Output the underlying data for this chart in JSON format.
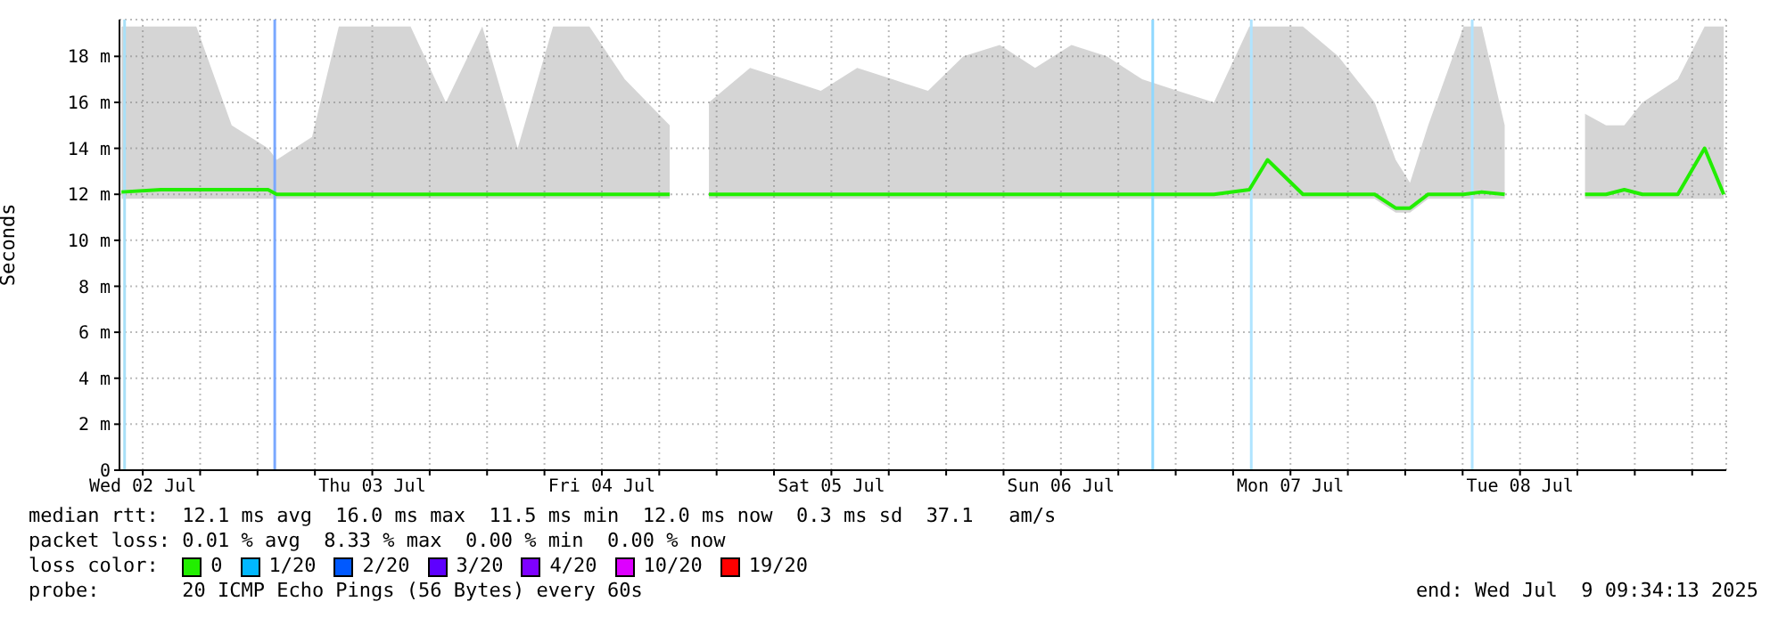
{
  "chart_data": {
    "type": "line",
    "ylabel": "Seconds",
    "xlim": [
      "2025-07-02T09:34",
      "2025-07-09T09:34"
    ],
    "xticks": [
      {
        "value": "2025-07-02T12:00",
        "label": "Wed 02 Jul"
      },
      {
        "value": "2025-07-02T18:00",
        "label": null
      },
      {
        "value": "2025-07-03T00:00",
        "label": null
      },
      {
        "value": "2025-07-03T06:00",
        "label": null
      },
      {
        "value": "2025-07-03T12:00",
        "label": "Thu 03 Jul"
      },
      {
        "value": "2025-07-03T18:00",
        "label": null
      },
      {
        "value": "2025-07-04T00:00",
        "label": null
      },
      {
        "value": "2025-07-04T06:00",
        "label": null
      },
      {
        "value": "2025-07-04T12:00",
        "label": "Fri 04 Jul"
      },
      {
        "value": "2025-07-04T18:00",
        "label": null
      },
      {
        "value": "2025-07-05T00:00",
        "label": null
      },
      {
        "value": "2025-07-05T06:00",
        "label": null
      },
      {
        "value": "2025-07-05T12:00",
        "label": "Sat 05 Jul"
      },
      {
        "value": "2025-07-05T18:00",
        "label": null
      },
      {
        "value": "2025-07-06T00:00",
        "label": null
      },
      {
        "value": "2025-07-06T06:00",
        "label": null
      },
      {
        "value": "2025-07-06T12:00",
        "label": "Sun 06 Jul"
      },
      {
        "value": "2025-07-06T18:00",
        "label": null
      },
      {
        "value": "2025-07-07T00:00",
        "label": null
      },
      {
        "value": "2025-07-07T06:00",
        "label": null
      },
      {
        "value": "2025-07-07T12:00",
        "label": "Mon 07 Jul"
      },
      {
        "value": "2025-07-07T18:00",
        "label": null
      },
      {
        "value": "2025-07-08T00:00",
        "label": null
      },
      {
        "value": "2025-07-08T06:00",
        "label": null
      },
      {
        "value": "2025-07-08T12:00",
        "label": "Tue 08 Jul"
      },
      {
        "value": "2025-07-08T18:00",
        "label": null
      },
      {
        "value": "2025-07-09T00:00",
        "label": null
      },
      {
        "value": "2025-07-09T06:00",
        "label": null
      }
    ],
    "ylim": [
      0,
      19.6
    ],
    "yticks": [
      {
        "value": 0,
        "label": "0"
      },
      {
        "value": 2,
        "label": "2 m"
      },
      {
        "value": 4,
        "label": "4 m"
      },
      {
        "value": 6,
        "label": "6 m"
      },
      {
        "value": 8,
        "label": "8 m"
      },
      {
        "value": 10,
        "label": "10 m"
      },
      {
        "value": 12,
        "label": "12 m"
      },
      {
        "value": 14,
        "label": "14 m"
      },
      {
        "value": 16,
        "label": "16 m"
      },
      {
        "value": 18,
        "label": "18 m"
      }
    ],
    "grid": true,
    "legend": "bottom",
    "legend_title": "loss color:",
    "line_style": "solid",
    "x": [
      "2025-07-02T09:46",
      "2025-07-02T13:54",
      "2025-07-02T17:36",
      "2025-07-02T21:18",
      "2025-07-03T01:06",
      "2025-07-03T02:00",
      "2025-07-03T05:42",
      "2025-07-03T08:30",
      "2025-07-03T12:18",
      "2025-07-03T16:00",
      "2025-07-03T19:42",
      "2025-07-03T23:30",
      "2025-07-04T03:12",
      "2025-07-04T06:54",
      "2025-07-04T10:42",
      "2025-07-04T14:24",
      "2025-07-04T19:06",
      "2025-07-04T20:00",
      "2025-07-04T23:12",
      "2025-07-05T03:30",
      "2025-07-05T07:12",
      "2025-07-05T10:54",
      "2025-07-05T14:42",
      "2025-07-05T18:24",
      "2025-07-05T22:06",
      "2025-07-06T01:48",
      "2025-07-06T05:36",
      "2025-07-06T09:18",
      "2025-07-06T13:06",
      "2025-07-06T16:48",
      "2025-07-06T20:30",
      "2025-07-07T00:12",
      "2025-07-07T04:00",
      "2025-07-07T07:42",
      "2025-07-07T09:36",
      "2025-07-07T13:18",
      "2025-07-07T17:00",
      "2025-07-07T20:48",
      "2025-07-07T23:00",
      "2025-07-08T00:30",
      "2025-07-08T02:24",
      "2025-07-08T06:06",
      "2025-07-08T08:00",
      "2025-07-08T10:24",
      "2025-07-08T11:42",
      "2025-07-08T18:48",
      "2025-07-08T21:00",
      "2025-07-08T22:54",
      "2025-07-09T00:48",
      "2025-07-09T04:30",
      "2025-07-09T07:18",
      "2025-07-09T09:18"
    ],
    "series": [
      {
        "name": "0",
        "color": "#22ee00",
        "values": [
          12.1,
          12.2,
          12.2,
          12.2,
          12.2,
          12.0,
          12.0,
          12.0,
          12.0,
          12.0,
          12.0,
          12.0,
          12.0,
          12.0,
          12.0,
          12.0,
          12.0,
          null,
          12.0,
          12.0,
          12.0,
          12.0,
          12.0,
          12.0,
          12.0,
          12.0,
          12.0,
          12.0,
          12.0,
          12.0,
          12.0,
          12.0,
          12.0,
          12.2,
          13.5,
          12.0,
          12.0,
          12.0,
          11.4,
          11.4,
          12.0,
          12.0,
          12.1,
          12.0,
          null,
          12.0,
          12.0,
          12.2,
          12.0,
          12.0,
          14.0,
          12.0
        ],
        "lower": [
          11.8,
          11.8,
          11.8,
          11.8,
          11.8,
          11.8,
          11.8,
          11.8,
          11.8,
          11.8,
          11.8,
          11.8,
          11.8,
          11.8,
          11.8,
          11.8,
          11.8,
          null,
          11.8,
          11.8,
          11.8,
          11.8,
          11.8,
          11.8,
          11.8,
          11.8,
          11.8,
          11.8,
          11.8,
          11.8,
          11.8,
          11.8,
          11.8,
          11.8,
          11.8,
          11.8,
          11.8,
          11.8,
          11.2,
          11.2,
          11.8,
          11.8,
          11.8,
          11.8,
          null,
          11.8,
          11.8,
          11.8,
          11.8,
          11.8,
          11.8,
          11.8
        ],
        "upper": [
          19.3,
          19.3,
          19.3,
          15.0,
          14.0,
          13.5,
          14.5,
          19.3,
          19.3,
          19.3,
          16.0,
          19.3,
          14.0,
          19.3,
          19.3,
          17.0,
          15.0,
          null,
          16.0,
          17.5,
          17.0,
          16.5,
          17.5,
          17.0,
          16.5,
          18.0,
          18.5,
          17.5,
          18.5,
          18.0,
          17.0,
          16.5,
          16.0,
          19.3,
          19.3,
          19.3,
          18.0,
          16.0,
          13.5,
          12.5,
          15.0,
          19.3,
          19.3,
          15.0,
          null,
          15.5,
          15.0,
          15.0,
          16.0,
          17.0,
          19.3,
          19.3
        ]
      },
      {
        "name": "1/20",
        "color": "#00b8ff",
        "values": [
          null,
          null,
          null,
          null,
          null,
          null,
          null,
          null,
          null,
          null,
          null,
          null,
          null,
          null,
          null,
          null,
          null,
          null,
          null,
          null,
          null,
          null,
          null,
          null,
          null,
          null,
          null,
          null,
          null,
          null,
          null,
          null,
          null,
          null,
          null,
          null,
          null,
          null,
          null,
          null,
          null,
          null,
          null,
          null,
          null,
          null,
          null,
          null,
          null,
          null,
          null,
          null
        ]
      },
      {
        "name": "2/20",
        "color": "#0059ff",
        "values": [
          null,
          null,
          null,
          null,
          null,
          null,
          null,
          null,
          null,
          null,
          null,
          null,
          null,
          null,
          null,
          null,
          null,
          null,
          null,
          null,
          null,
          null,
          null,
          null,
          null,
          null,
          null,
          null,
          null,
          null,
          null,
          null,
          null,
          null,
          null,
          null,
          null,
          null,
          null,
          null,
          null,
          null,
          null,
          null,
          null,
          null,
          null,
          null,
          null,
          null,
          null,
          null
        ]
      },
      {
        "name": "3/20",
        "color": "#5e00ff",
        "values": [
          null,
          null,
          null,
          null,
          null,
          null,
          null,
          null,
          null,
          null,
          null,
          null,
          null,
          null,
          null,
          null,
          null,
          null,
          null,
          null,
          null,
          null,
          null,
          null,
          null,
          null,
          null,
          null,
          null,
          null,
          null,
          null,
          null,
          null,
          null,
          null,
          null,
          null,
          null,
          null,
          null,
          null,
          null,
          null,
          null,
          null,
          null,
          null,
          null,
          null,
          null,
          null
        ]
      },
      {
        "name": "4/20",
        "color": "#7e00ff",
        "values": [
          null,
          null,
          null,
          null,
          null,
          null,
          null,
          null,
          null,
          null,
          null,
          null,
          null,
          null,
          null,
          null,
          null,
          null,
          null,
          null,
          null,
          null,
          null,
          null,
          null,
          null,
          null,
          null,
          null,
          null,
          null,
          null,
          null,
          null,
          null,
          null,
          null,
          null,
          null,
          null,
          null,
          null,
          null,
          null,
          null,
          null,
          null,
          null,
          null,
          null,
          null,
          null
        ]
      },
      {
        "name": "10/20",
        "color": "#dd00ff",
        "values": [
          null,
          null,
          null,
          null,
          null,
          null,
          null,
          null,
          null,
          null,
          null,
          null,
          null,
          null,
          null,
          null,
          null,
          null,
          null,
          null,
          null,
          null,
          null,
          null,
          null,
          null,
          null,
          null,
          null,
          null,
          null,
          null,
          null,
          null,
          null,
          null,
          null,
          null,
          null,
          null,
          null,
          null,
          null,
          null,
          null,
          null,
          null,
          null,
          null,
          null,
          null,
          null
        ]
      },
      {
        "name": "19/20",
        "color": "#ff0000",
        "values": [
          null,
          null,
          null,
          null,
          null,
          null,
          null,
          null,
          null,
          null,
          null,
          null,
          null,
          null,
          null,
          null,
          null,
          null,
          null,
          null,
          null,
          null,
          null,
          null,
          null,
          null,
          null,
          null,
          null,
          null,
          null,
          null,
          null,
          null,
          null,
          null,
          null,
          null,
          null,
          null,
          null,
          null,
          null,
          null,
          null,
          null,
          null,
          null,
          null,
          null,
          null,
          null
        ]
      }
    ],
    "ref_lines": [
      {
        "axis": "x",
        "value": "2025-07-02T10:06",
        "color": "#a8e0f8"
      },
      {
        "axis": "x",
        "value": "2025-07-03T01:48",
        "color": "#7aa8ff"
      },
      {
        "axis": "x",
        "value": "2025-07-06T21:36",
        "color": "#90d8ff"
      },
      {
        "axis": "x",
        "value": "2025-07-07T07:54",
        "color": "#b0e4ff"
      },
      {
        "axis": "x",
        "value": "2025-07-08T07:00",
        "color": "#b0e4ff"
      }
    ],
    "annotations": [
      "median rtt:  12.1 ms avg  16.0 ms max  11.5 ms min  12.0 ms now  0.3 ms sd  37.1   am/s",
      "packet loss: 0.01 % avg  8.33 % max  0.00 % min  0.00 % now",
      "probe:       20 ICMP Echo Pings (56 Bytes) every 60s",
      "end: Wed Jul  9 09:34:13 2025"
    ]
  }
}
